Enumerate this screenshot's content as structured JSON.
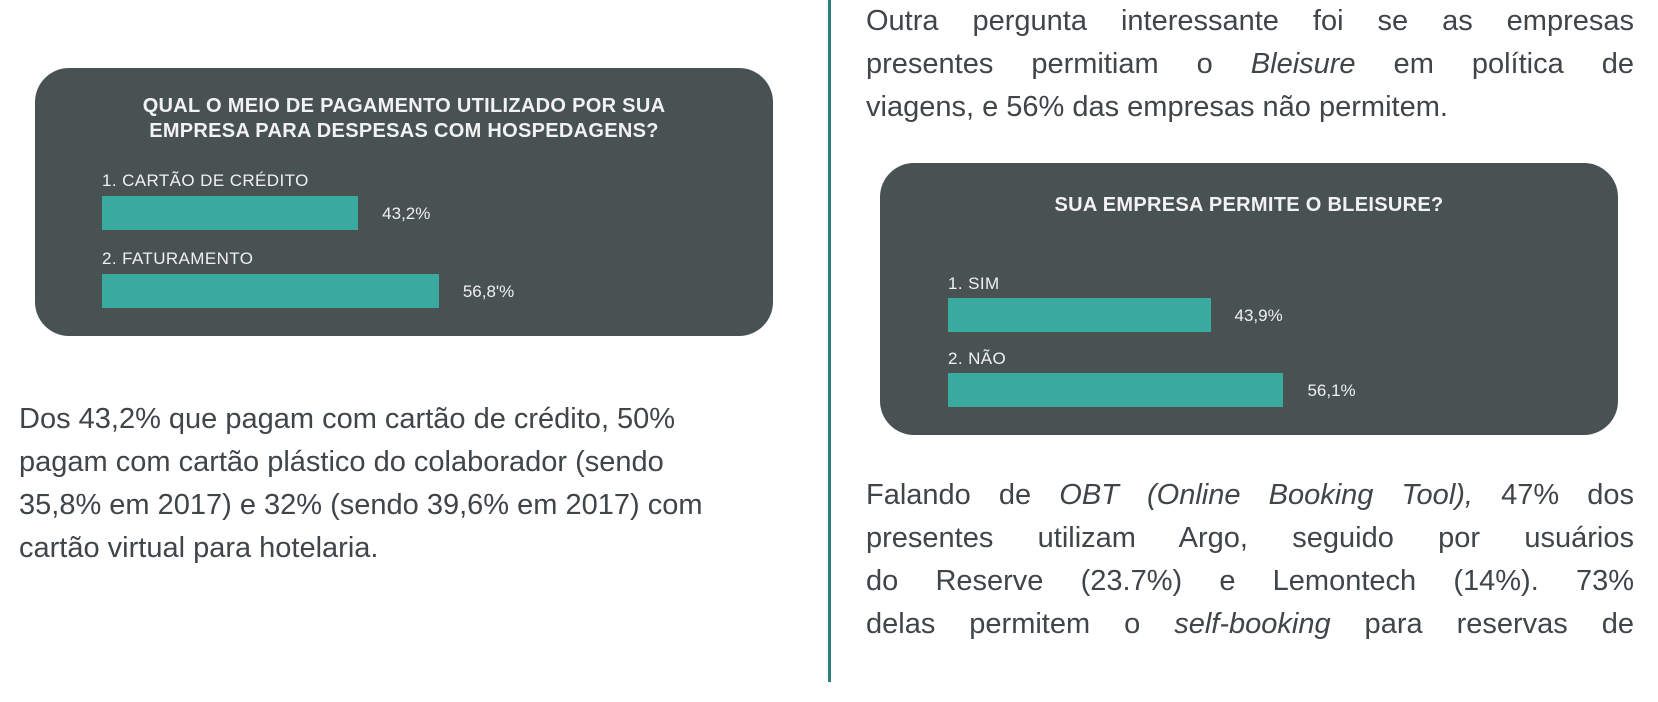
{
  "chart_data": [
    {
      "type": "bar",
      "orientation": "horizontal",
      "title": "QUAL O MEIO DE PAGAMENTO UTILIZADO POR SUA EMPRESA PARA DESPESAS COM HOSPEDAGENS?",
      "title_lines": [
        "QUAL O MEIO DE PAGAMENTO UTILIZADO POR SUA",
        "EMPRESA PARA DESPESAS COM HOSPEDAGENS?"
      ],
      "categories": [
        "1. CARTÃO DE CRÉDITO",
        "2. FATURAMENTO"
      ],
      "values": [
        43.2,
        56.8
      ],
      "value_labels": [
        "43,2%",
        "56,8'%"
      ],
      "bar_color": "#3aa99f",
      "background_color": "#495253"
    },
    {
      "type": "bar",
      "orientation": "horizontal",
      "title": "SUA EMPRESA PERMITE O BLEISURE?",
      "title_lines": [
        "SUA EMPRESA PERMITE O BLEISURE?"
      ],
      "categories": [
        "1. SIM",
        "2. NÃO"
      ],
      "values": [
        43.9,
        56.1
      ],
      "value_labels": [
        "43,9%",
        "56,1%"
      ],
      "bar_color": "#3aa99f",
      "background_color": "#495253"
    }
  ],
  "left_text": {
    "lines": [
      "Dos 43,2% que pagam com cartão de crédito, 50%",
      "pagam com cartão plástico do colaborador (sendo",
      "35,8% em 2017) e 32% (sendo 39,6% em 2017) com",
      "cartão virtual para hotelaria."
    ]
  },
  "right_top_text": {
    "l1": "Outra pergunta interessante foi se as empresas",
    "l2_a": "presentes permitiam o ",
    "l2_em": "Bleisure",
    "l2_b": " em política de",
    "l3": "viagens, e 56% das empresas não permitem."
  },
  "right_bottom_text": {
    "l1_a": "Falando de ",
    "l1_em": "OBT (Online Booking Tool),",
    "l1_b": " 47% dos",
    "l2": "presentes utilizam Argo, seguido por usuários",
    "l3": "do Reserve (23.7%) e Lemontech (14%). 73%",
    "l4_a": "delas permitem o ",
    "l4_em": "self-booking",
    "l4_b": " para reservas de"
  },
  "colors": {
    "divider": "#2e7f7c",
    "card": "#495253",
    "bar": "#3aa99f"
  }
}
